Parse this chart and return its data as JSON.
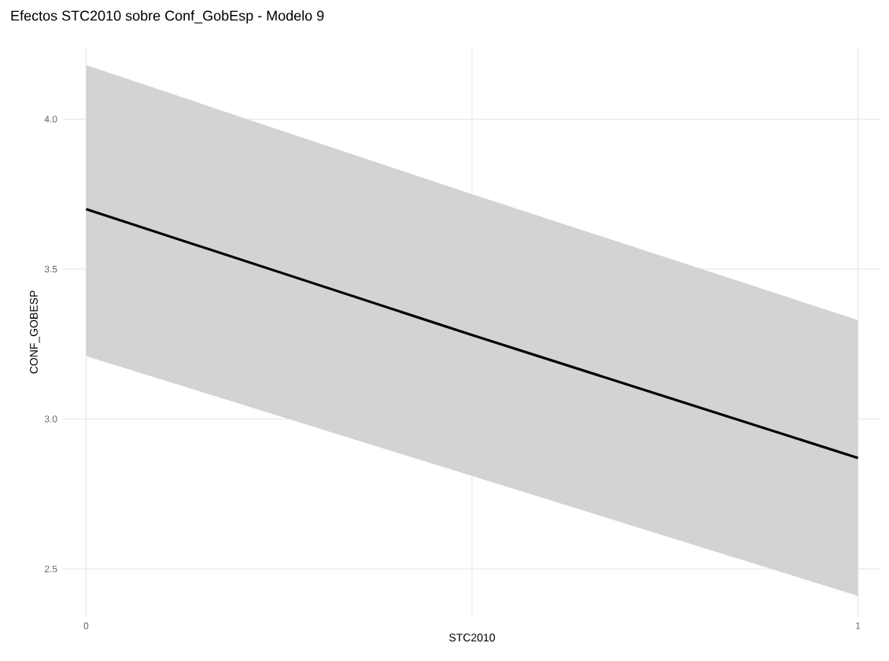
{
  "chart_data": {
    "type": "line",
    "title": "Efectos STC2010 sobre Conf_GobEsp - Modelo 9",
    "xlabel": "STC2010",
    "ylabel": "CONF_GOBESP",
    "x": [
      0,
      0.5,
      1
    ],
    "series": [
      {
        "color": "#000000",
        "values": [
          3.7,
          3.28,
          2.87
        ],
        "lower": [
          3.21,
          2.81,
          2.41
        ],
        "upper": [
          4.18,
          3.75,
          3.33
        ]
      }
    ],
    "xlim": [
      -0.03,
      1.03
    ],
    "ylim": [
      2.34,
      4.24
    ],
    "xticks": [
      0,
      {
        "value": 0.5,
        "label": null
      },
      1
    ],
    "yticks": [
      2.5,
      {
        "value": 3,
        "label": "3.0"
      },
      3.5,
      {
        "value": 4,
        "label": "4.0"
      }
    ],
    "grid": true
  }
}
